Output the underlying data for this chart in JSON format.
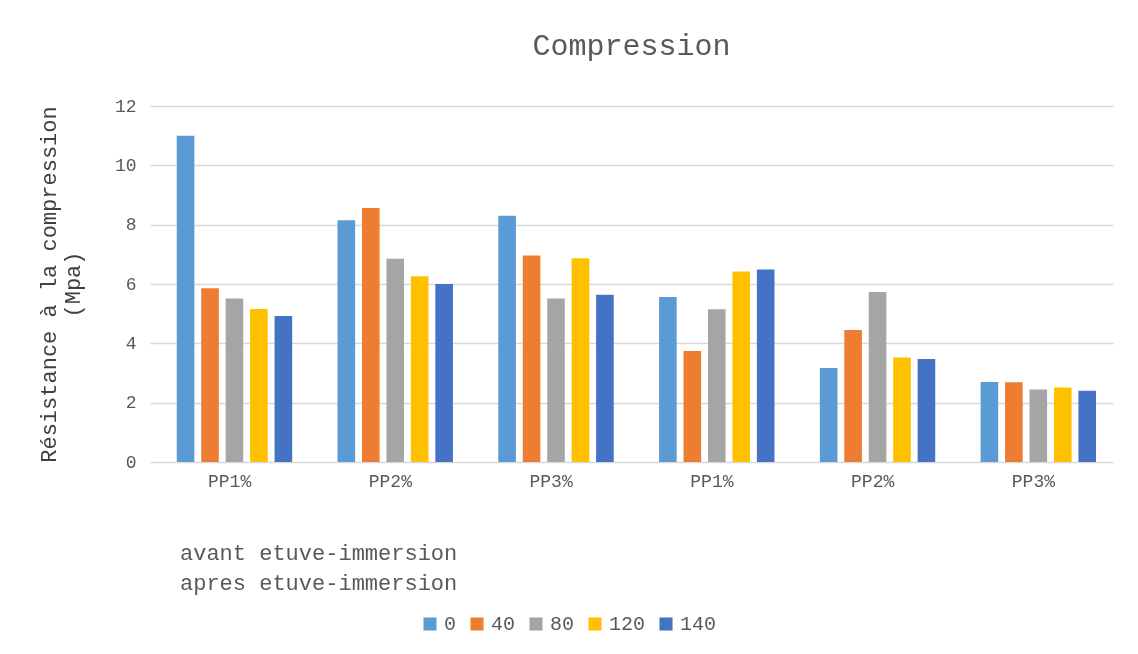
{
  "chart_data": {
    "type": "bar",
    "title": "Compression",
    "ylabel": "Résistance à la compression (Mpa)",
    "categories": [
      "PP1%",
      "PP2%",
      "PP3%",
      "PP1%",
      "PP2%",
      "PP3%"
    ],
    "series": [
      {
        "name": "0",
        "color": "#5b9bd5",
        "values": [
          11.0,
          8.15,
          8.3,
          5.56,
          3.17,
          2.7
        ]
      },
      {
        "name": "40",
        "color": "#ed7d31",
        "values": [
          5.86,
          8.56,
          6.96,
          3.74,
          4.45,
          2.69
        ]
      },
      {
        "name": "80",
        "color": "#a5a5a5",
        "values": [
          5.51,
          6.85,
          5.51,
          5.15,
          5.73,
          2.44
        ]
      },
      {
        "name": "120",
        "color": "#ffc000",
        "values": [
          5.16,
          6.26,
          6.87,
          6.42,
          3.52,
          2.51
        ]
      },
      {
        "name": "140",
        "color": "#4472c4",
        "values": [
          4.92,
          6.0,
          5.64,
          6.49,
          3.47,
          2.4
        ]
      }
    ],
    "ylim": [
      0,
      12
    ],
    "yticks": [
      0,
      2,
      4,
      6,
      8,
      10,
      12
    ],
    "grid": "y",
    "legend": "bottom",
    "annotations": [
      "avant etuve-immersion",
      "apres etuve-immersion"
    ]
  }
}
